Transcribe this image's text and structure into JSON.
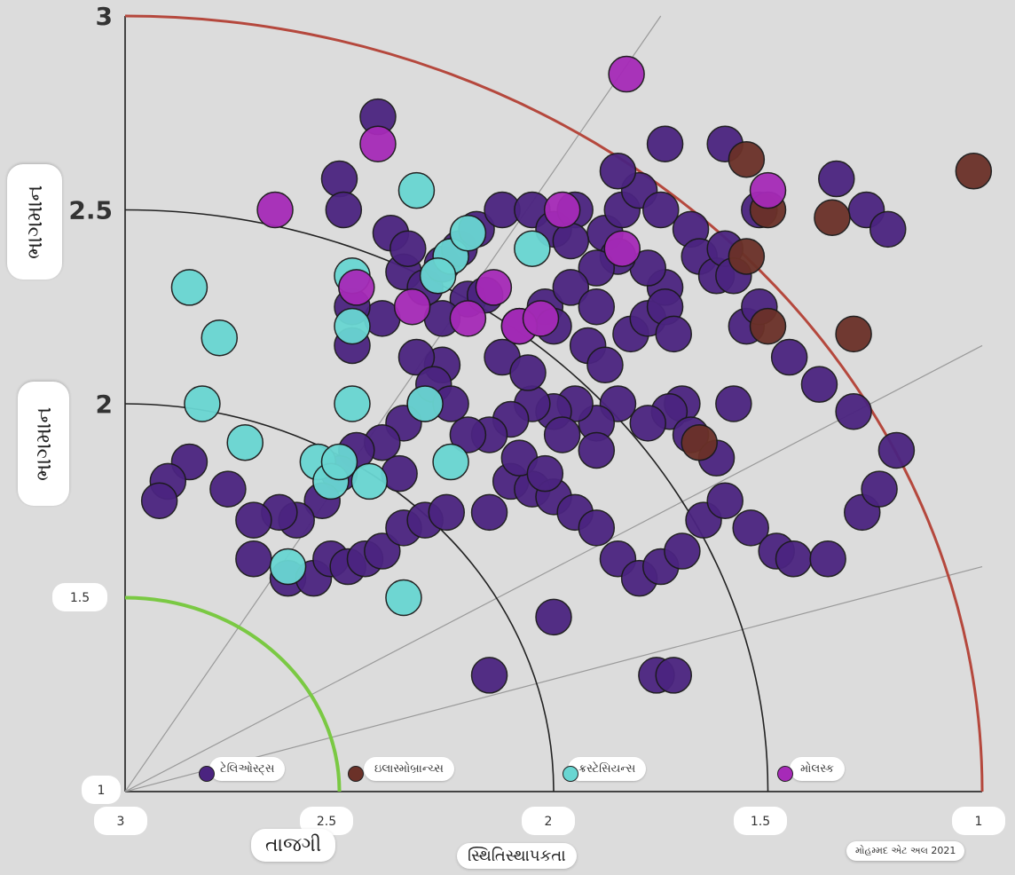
{
  "chart_data": {
    "type": "scatter",
    "title": "",
    "ylabel": "ભાગમાન",
    "xlabel_primary": "તાજગી",
    "xlabel_secondary": "સ્થિતિસ્થાપકતા",
    "credit": "મોહમ્મદ એટ અલ 2021",
    "ylim": [
      1,
      3
    ],
    "xlim": [
      3,
      1
    ],
    "y_ticks": [
      "3",
      "2.5",
      "2",
      "1.5",
      "1"
    ],
    "x_ticks": [
      "3",
      "2.5",
      "2",
      "1.5",
      "1"
    ],
    "colors": {
      "axis_arc_outer": "#b5483d",
      "axis_arc_inner": "#7ac943",
      "grid_arc": "#222222",
      "ray": "#9a9a9a"
    },
    "series": [
      {
        "name": "ટેલિઓસ્ટ્સ",
        "color": "#4b2480",
        "points": [
          [
            2.41,
            2.74
          ],
          [
            2.5,
            2.58
          ],
          [
            2.49,
            2.5
          ],
          [
            2.38,
            2.44
          ],
          [
            2.35,
            2.34
          ],
          [
            2.2,
            2.27
          ],
          [
            2.02,
            2.25
          ],
          [
            2.16,
            2.28
          ],
          [
            2.26,
            2.22
          ],
          [
            2.4,
            2.22
          ],
          [
            2.47,
            2.25
          ],
          [
            2.47,
            2.15
          ],
          [
            2.34,
            2.4
          ],
          [
            2.3,
            2.3
          ],
          [
            2.26,
            2.36
          ],
          [
            2.22,
            2.4
          ],
          [
            2.18,
            2.45
          ],
          [
            2.12,
            2.5
          ],
          [
            2.05,
            2.5
          ],
          [
            2.0,
            2.45
          ],
          [
            1.95,
            2.5
          ],
          [
            1.88,
            2.44
          ],
          [
            1.84,
            2.5
          ],
          [
            1.8,
            2.55
          ],
          [
            1.75,
            2.5
          ],
          [
            1.68,
            2.45
          ],
          [
            1.66,
            2.38
          ],
          [
            1.62,
            2.33
          ],
          [
            1.74,
            2.3
          ],
          [
            1.78,
            2.35
          ],
          [
            1.85,
            2.38
          ],
          [
            1.9,
            2.35
          ],
          [
            1.96,
            2.3
          ],
          [
            2.0,
            2.2
          ],
          [
            1.92,
            2.15
          ],
          [
            1.88,
            2.1
          ],
          [
            1.82,
            2.18
          ],
          [
            1.78,
            2.22
          ],
          [
            1.74,
            2.25
          ],
          [
            1.72,
            2.18
          ],
          [
            1.9,
            2.25
          ],
          [
            1.96,
            2.42
          ],
          [
            1.85,
            2.6
          ],
          [
            1.74,
            2.67
          ],
          [
            1.6,
            2.67
          ],
          [
            1.52,
            2.5
          ],
          [
            1.6,
            2.4
          ],
          [
            1.58,
            2.33
          ],
          [
            1.55,
            2.2
          ],
          [
            1.58,
            2.0
          ],
          [
            1.7,
            2.0
          ],
          [
            1.73,
            1.98
          ],
          [
            1.78,
            1.95
          ],
          [
            1.85,
            2.0
          ],
          [
            1.9,
            1.95
          ],
          [
            1.95,
            2.0
          ],
          [
            2.0,
            1.98
          ],
          [
            2.05,
            2.0
          ],
          [
            2.1,
            1.96
          ],
          [
            2.15,
            1.92
          ],
          [
            2.26,
            2.1
          ],
          [
            2.3,
            2.0
          ],
          [
            2.35,
            1.95
          ],
          [
            2.4,
            1.9
          ],
          [
            2.46,
            1.88
          ],
          [
            2.5,
            1.82
          ],
          [
            2.54,
            1.75
          ],
          [
            2.6,
            1.7
          ],
          [
            2.64,
            1.72
          ],
          [
            2.7,
            1.7
          ],
          [
            2.76,
            1.78
          ],
          [
            2.85,
            1.85
          ],
          [
            2.9,
            1.8
          ],
          [
            2.92,
            1.75
          ],
          [
            2.7,
            1.6
          ],
          [
            2.62,
            1.55
          ],
          [
            2.56,
            1.55
          ],
          [
            2.52,
            1.6
          ],
          [
            2.48,
            1.58
          ],
          [
            2.44,
            1.6
          ],
          [
            2.4,
            1.62
          ],
          [
            2.35,
            1.68
          ],
          [
            2.3,
            1.7
          ],
          [
            2.25,
            1.72
          ],
          [
            2.15,
            1.72
          ],
          [
            2.1,
            1.8
          ],
          [
            2.05,
            1.78
          ],
          [
            2.0,
            1.76
          ],
          [
            1.95,
            1.72
          ],
          [
            1.9,
            1.68
          ],
          [
            1.85,
            1.6
          ],
          [
            1.8,
            1.55
          ],
          [
            1.75,
            1.58
          ],
          [
            1.7,
            1.62
          ],
          [
            1.65,
            1.7
          ],
          [
            1.6,
            1.75
          ],
          [
            1.54,
            1.68
          ],
          [
            1.48,
            1.62
          ],
          [
            1.44,
            1.6
          ],
          [
            1.36,
            1.6
          ],
          [
            1.28,
            1.72
          ],
          [
            1.24,
            1.78
          ],
          [
            1.2,
            1.88
          ],
          [
            1.3,
            1.98
          ],
          [
            1.38,
            2.05
          ],
          [
            1.45,
            2.12
          ],
          [
            1.52,
            2.25
          ],
          [
            2.0,
            1.45
          ],
          [
            2.15,
            1.3
          ],
          [
            1.76,
            1.3
          ],
          [
            1.72,
            1.3
          ],
          [
            1.9,
            1.88
          ],
          [
            1.98,
            1.92
          ],
          [
            2.08,
            1.86
          ],
          [
            2.02,
            1.82
          ],
          [
            1.68,
            1.92
          ],
          [
            1.62,
            1.86
          ],
          [
            1.34,
            2.58
          ],
          [
            1.27,
            2.5
          ],
          [
            1.22,
            2.45
          ],
          [
            2.32,
            2.12
          ],
          [
            2.28,
            2.05
          ],
          [
            2.2,
            1.92
          ],
          [
            2.24,
            2.0
          ],
          [
            2.36,
            1.82
          ],
          [
            2.12,
            2.12
          ],
          [
            2.06,
            2.08
          ],
          [
            2.08,
            2.2
          ]
        ]
      },
      {
        "name": "ઇલાસ્મોબ્રાન્ચ્સ",
        "color": "#6b3128",
        "points": [
          [
            1.55,
            2.63
          ],
          [
            1.5,
            2.5
          ],
          [
            1.55,
            2.38
          ],
          [
            1.66,
            1.9
          ],
          [
            1.02,
            2.6
          ],
          [
            1.35,
            2.48
          ],
          [
            1.5,
            2.2
          ],
          [
            1.3,
            2.18
          ]
        ]
      },
      {
        "name": "ક્રસ્ટેસિયન્સ",
        "color": "#69d6d2",
        "points": [
          [
            2.85,
            2.3
          ],
          [
            2.78,
            2.17
          ],
          [
            2.82,
            2.0
          ],
          [
            2.72,
            1.9
          ],
          [
            2.55,
            1.85
          ],
          [
            2.52,
            1.8
          ],
          [
            2.5,
            1.85
          ],
          [
            2.43,
            1.8
          ],
          [
            2.62,
            1.58
          ],
          [
            2.35,
            1.5
          ],
          [
            2.47,
            2.33
          ],
          [
            2.47,
            2.2
          ],
          [
            2.47,
            2.0
          ],
          [
            2.32,
            2.55
          ],
          [
            2.24,
            2.38
          ],
          [
            2.27,
            2.33
          ],
          [
            2.3,
            2.0
          ],
          [
            2.24,
            1.85
          ],
          [
            2.05,
            2.4
          ],
          [
            2.2,
            2.44
          ]
        ]
      },
      {
        "name": "મોલસ્ક",
        "color": "#a62ab8",
        "points": [
          [
            1.83,
            2.85
          ],
          [
            2.41,
            2.67
          ],
          [
            2.65,
            2.5
          ],
          [
            2.46,
            2.3
          ],
          [
            2.33,
            2.25
          ],
          [
            2.2,
            2.22
          ],
          [
            2.14,
            2.3
          ],
          [
            2.08,
            2.2
          ],
          [
            2.03,
            2.22
          ],
          [
            1.98,
            2.5
          ],
          [
            1.84,
            2.4
          ],
          [
            1.5,
            2.55
          ]
        ]
      }
    ],
    "legend": [
      "ટેલિઓસ્ટ્સ",
      "ઇલાસ્મોબ્રાન્ચ્સ",
      "ક્રસ્ટેસિયન્સ",
      "મોલસ્ક"
    ]
  }
}
